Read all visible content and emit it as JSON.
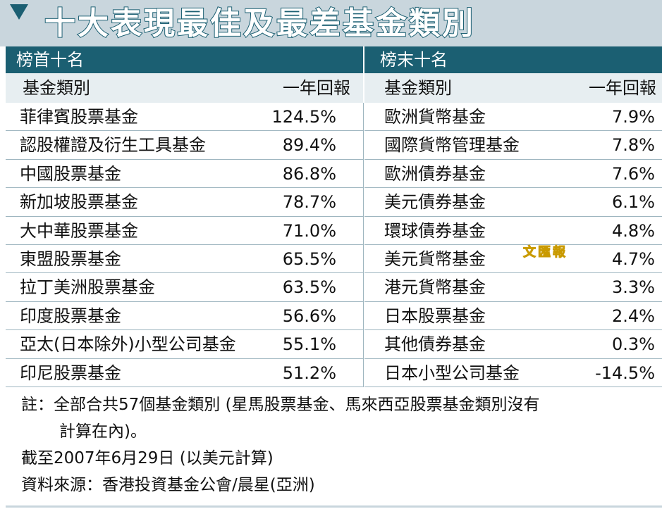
{
  "title": "十大表現最佳及最差基金類別",
  "left": {
    "heading": "榜首十名",
    "col_name": "基金類別",
    "col_return": "一年回報",
    "rows": [
      {
        "name": "菲律賓股票基金",
        "ret": "124.5%"
      },
      {
        "name": "認股權證及衍生工具基金",
        "ret": "89.4%"
      },
      {
        "name": "中國股票基金",
        "ret": "86.8%"
      },
      {
        "name": "新加坡股票基金",
        "ret": "78.7%"
      },
      {
        "name": "大中華股票基金",
        "ret": "71.0%"
      },
      {
        "name": "東盟股票基金",
        "ret": "65.5%"
      },
      {
        "name": "拉丁美洲股票基金",
        "ret": "63.5%"
      },
      {
        "name": "印度股票基金",
        "ret": "56.6%"
      },
      {
        "name": "亞太(日本除外)小型公司基金",
        "ret": "55.1%"
      },
      {
        "name": "印尼股票基金",
        "ret": "51.2%"
      }
    ]
  },
  "right": {
    "heading": "榜末十名",
    "col_name": "基金類別",
    "col_return": "一年回報",
    "rows": [
      {
        "name": "歐洲貨幣基金",
        "ret": "7.9%"
      },
      {
        "name": "國際貨幣管理基金",
        "ret": "7.8%"
      },
      {
        "name": "歐洲債券基金",
        "ret": "7.6%"
      },
      {
        "name": "美元債券基金",
        "ret": "6.1%"
      },
      {
        "name": "環球債券基金",
        "ret": "4.8%"
      },
      {
        "name": "美元貨幣基金",
        "ret": "4.7%"
      },
      {
        "name": "港元貨幣基金",
        "ret": "3.3%"
      },
      {
        "name": "日本股票基金",
        "ret": "2.4%"
      },
      {
        "name": "其他債券基金",
        "ret": "0.3%"
      },
      {
        "name": "日本小型公司基金",
        "ret": "-14.5%"
      }
    ]
  },
  "notes": {
    "note_line1": "註：全部合共57個基金類別 (星馬股票基金、馬來西亞股票基金類別沒有",
    "note_line2": "計算在內)。",
    "date_line": "截至2007年6月29日 (以美元計算)",
    "source_line": "資料來源：香港投資基金公會/晨星(亞洲)"
  },
  "watermark": "文匯報",
  "colors": {
    "accent": "#1b5f72",
    "band": "#c9d6dd",
    "subhead": "#e7eef1"
  }
}
